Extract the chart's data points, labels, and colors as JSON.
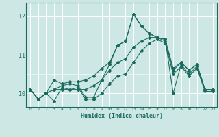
{
  "xlabel": "Humidex (Indice chaleur)",
  "xlim": [
    -0.5,
    23.5
  ],
  "ylim": [
    9.65,
    12.35
  ],
  "yticks": [
    10,
    11,
    12
  ],
  "xticks": [
    0,
    1,
    2,
    3,
    4,
    5,
    6,
    7,
    8,
    9,
    10,
    11,
    12,
    13,
    14,
    15,
    16,
    17,
    18,
    19,
    20,
    21,
    22,
    23
  ],
  "bg_color": "#cde8e4",
  "line_color": "#1a6b5e",
  "grid_color": "#ffffff",
  "lines": [
    [
      10.1,
      9.85,
      10.0,
      10.35,
      10.25,
      10.3,
      10.3,
      10.35,
      10.45,
      10.65,
      10.8,
      11.25,
      11.35,
      12.05,
      11.75,
      11.55,
      11.45,
      11.4,
      10.65,
      10.8,
      10.6,
      10.75,
      10.1,
      10.1
    ],
    [
      10.1,
      9.85,
      10.0,
      10.1,
      10.2,
      10.25,
      10.2,
      9.9,
      9.9,
      10.35,
      10.75,
      11.25,
      11.35,
      12.05,
      11.75,
      11.55,
      11.45,
      11.4,
      10.0,
      10.75,
      10.5,
      10.7,
      10.1,
      10.1
    ],
    [
      10.1,
      9.85,
      10.0,
      10.1,
      10.1,
      10.1,
      10.1,
      10.1,
      10.2,
      10.35,
      10.6,
      10.8,
      10.9,
      11.2,
      11.35,
      11.45,
      11.45,
      11.35,
      10.6,
      10.8,
      10.6,
      10.75,
      10.1,
      10.1
    ],
    [
      10.1,
      9.85,
      10.0,
      9.8,
      10.15,
      10.1,
      10.15,
      9.85,
      9.85,
      10.0,
      10.25,
      10.45,
      10.5,
      10.8,
      11.1,
      11.3,
      11.4,
      11.3,
      10.5,
      10.7,
      10.45,
      10.65,
      10.05,
      10.05
    ]
  ]
}
